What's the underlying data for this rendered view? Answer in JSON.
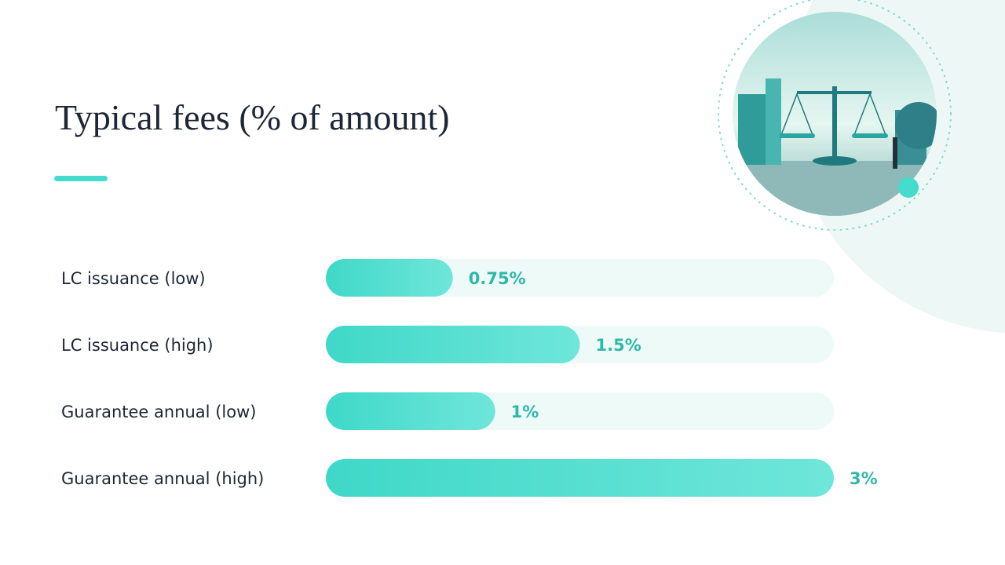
{
  "chart_data": {
    "type": "bar",
    "orientation": "horizontal",
    "title": "Typical fees (% of amount)",
    "categories": [
      "LC issuance (low)",
      "LC issuance (high)",
      "Guarantee annual (low)",
      "Guarantee annual (high)"
    ],
    "values": [
      0.75,
      1.5,
      1,
      3
    ],
    "value_labels": [
      "0.75%",
      "1.5%",
      "1%",
      "3%"
    ],
    "color": "#45dccd",
    "xlim": [
      0,
      3
    ]
  }
}
